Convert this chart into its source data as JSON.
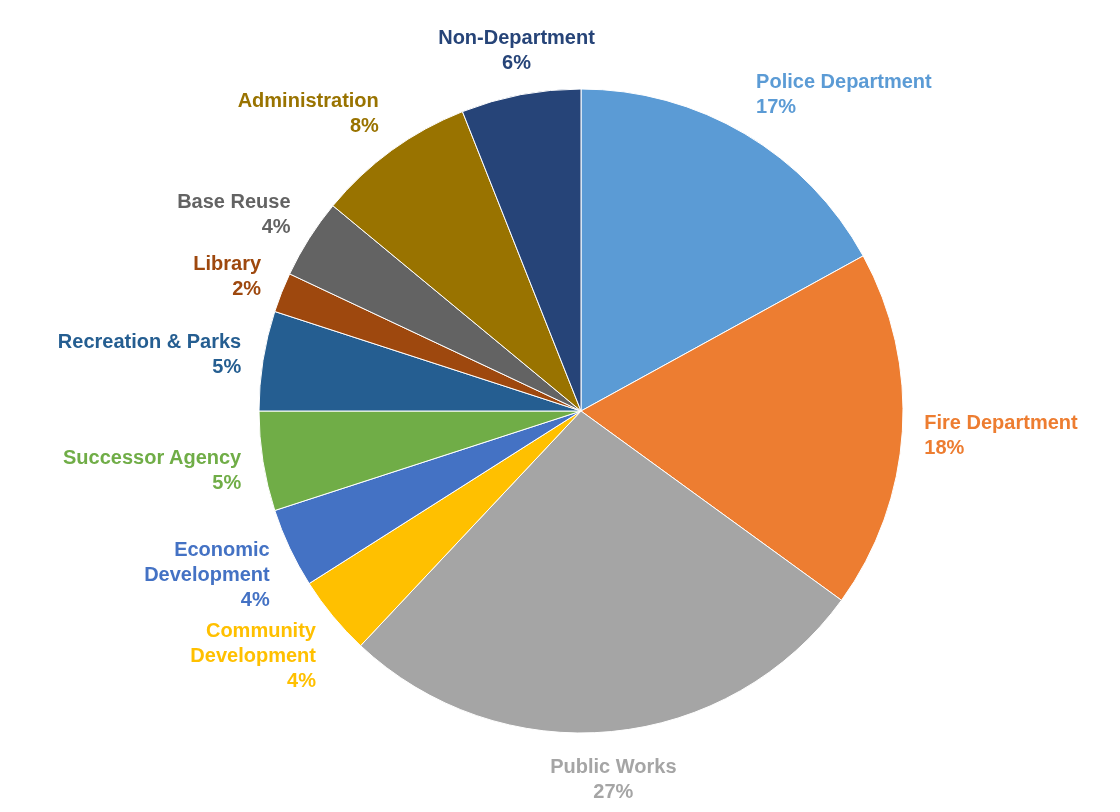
{
  "chart_data": {
    "type": "pie",
    "categories": [
      "Police Department",
      "Fire Department",
      "Public Works",
      "Community Development",
      "Economic Development",
      "Successor Agency",
      "Recreation & Parks",
      "Library",
      "Base Reuse",
      "Administration",
      "Non-Department"
    ],
    "values": [
      17,
      18,
      27,
      4,
      4,
      5,
      5,
      2,
      4,
      8,
      6
    ],
    "value_labels": [
      "17%",
      "18%",
      "27%",
      "4%",
      "4%",
      "5%",
      "5%",
      "2%",
      "4%",
      "8%",
      "6%"
    ],
    "colors": [
      "#5b9bd5",
      "#ed7d31",
      "#a5a5a5",
      "#ffc000",
      "#4472c4",
      "#70ad47",
      "#255e91",
      "#9e480e",
      "#636363",
      "#997300",
      "#264478"
    ],
    "legend": false
  }
}
